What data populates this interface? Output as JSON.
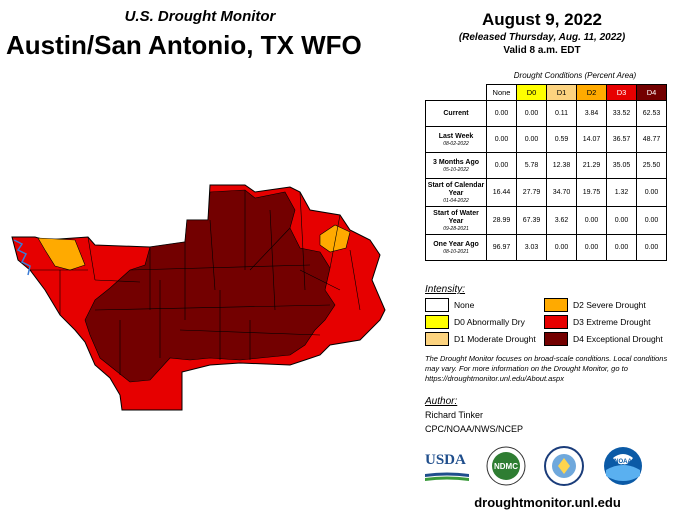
{
  "header": {
    "subtitle": "U.S. Drought Monitor",
    "title": "Austin/San Antonio, TX WFO"
  },
  "release": {
    "date": "August 9, 2022",
    "released": "(Released Thursday, Aug. 11, 2022)",
    "valid": "Valid 8 a.m. EDT"
  },
  "table": {
    "caption": "Drought Conditions (Percent Area)",
    "columns": [
      "None",
      "D0",
      "D1",
      "D2",
      "D3",
      "D4"
    ],
    "column_colors": [
      "#ffffff",
      "#ffff00",
      "#fcd37f",
      "#ffaa00",
      "#e60000",
      "#730000"
    ],
    "rows": [
      {
        "label": "Current",
        "date": "",
        "values": [
          "0.00",
          "0.00",
          "0.11",
          "3.84",
          "33.52",
          "62.53"
        ]
      },
      {
        "label": "Last Week",
        "date": "08-02-2022",
        "values": [
          "0.00",
          "0.00",
          "0.59",
          "14.07",
          "36.57",
          "48.77"
        ]
      },
      {
        "label": "3 Months Ago",
        "date": "05-10-2022",
        "values": [
          "0.00",
          "5.78",
          "12.38",
          "21.29",
          "35.05",
          "25.50"
        ]
      },
      {
        "label": "Start of Calendar Year",
        "date": "01-04-2022",
        "values": [
          "16.44",
          "27.79",
          "34.70",
          "19.75",
          "1.32",
          "0.00"
        ]
      },
      {
        "label": "Start of Water Year",
        "date": "09-28-2021",
        "values": [
          "28.99",
          "67.39",
          "3.62",
          "0.00",
          "0.00",
          "0.00"
        ]
      },
      {
        "label": "One Year Ago",
        "date": "08-10-2021",
        "values": [
          "96.97",
          "3.03",
          "0.00",
          "0.00",
          "0.00",
          "0.00"
        ]
      }
    ]
  },
  "legend": {
    "title": "Intensity:",
    "items": [
      {
        "label": "None",
        "color": "#ffffff"
      },
      {
        "label": "D0 Abnormally Dry",
        "color": "#ffff00"
      },
      {
        "label": "D1 Moderate Drought",
        "color": "#fcd37f"
      },
      {
        "label": "D2 Severe Drought",
        "color": "#ffaa00"
      },
      {
        "label": "D3 Extreme Drought",
        "color": "#e60000"
      },
      {
        "label": "D4 Exceptional Drought",
        "color": "#730000"
      }
    ]
  },
  "note": "The Drought Monitor focuses on broad-scale conditions. Local conditions may vary. For more information on the Drought Monitor, go to https://droughtmonitor.unl.edu/About.aspx",
  "author": {
    "heading": "Author:",
    "name": "Richard Tinker",
    "org": "CPC/NOAA/NWS/NCEP"
  },
  "logos": {
    "usda": "USDA",
    "ndmc": "NDMC",
    "noaa": "NOAA"
  },
  "footer_url": "droughtmonitor.unl.edu",
  "map": {
    "region": "Austin/San Antonio, TX WFO",
    "dominant_category": "D4",
    "categories_present": [
      "D1",
      "D2",
      "D3",
      "D4"
    ]
  }
}
